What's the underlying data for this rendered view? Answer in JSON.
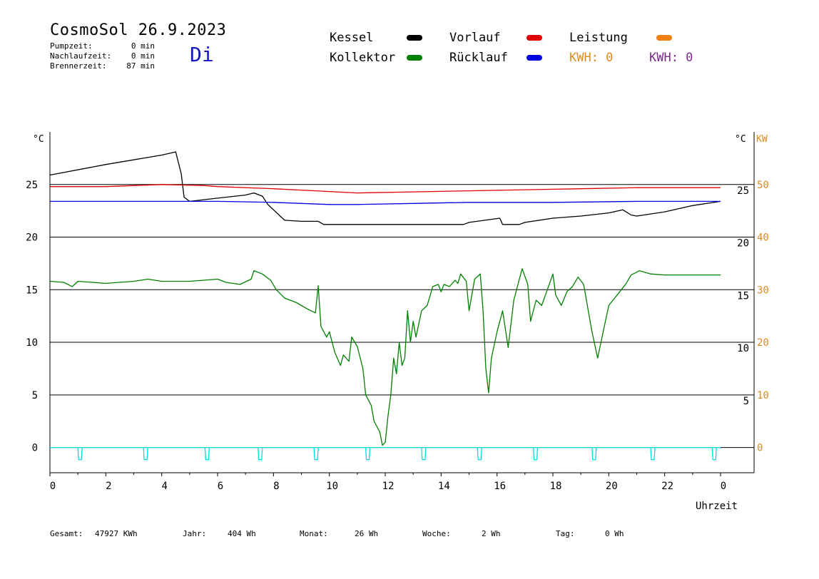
{
  "header": {
    "title": "CosmoSol 26.9.2023",
    "day": "Di",
    "stats": [
      {
        "label": "Pumpzeit:",
        "value": "0 min"
      },
      {
        "label": "Nachlaufzeit:",
        "value": "0 min"
      },
      {
        "label": "Brennerzeit:",
        "value": "87 min"
      }
    ]
  },
  "legend": {
    "kessel": {
      "label": "Kessel",
      "color": "#000000"
    },
    "kollektor": {
      "label": "Kollektor",
      "color": "#008000"
    },
    "vorlauf": {
      "label": "Vorlauf",
      "color": "#e00000"
    },
    "ruecklauf": {
      "label": "Rücklauf",
      "color": "#0000e0"
    },
    "leistung": {
      "label": "Leistung",
      "color": "#f08010"
    },
    "kwh_orange": "KWH: 0",
    "kwh_purple": "KWH: 0",
    "orange": "#e08a1e",
    "purple": "#7a2a8a"
  },
  "footer": {
    "gesamt": {
      "label": "Gesamt:",
      "value": "47927 KWh"
    },
    "jahr": {
      "label": "Jahr:",
      "value": "404 Wh"
    },
    "monat": {
      "label": "Monat:",
      "value": "26 Wh"
    },
    "woche": {
      "label": "Woche:",
      "value": "2 Wh"
    },
    "tag": {
      "label": "Tag:",
      "value": "0 Wh"
    }
  },
  "chart_data": {
    "type": "line",
    "xlabel": "Uhrzeit",
    "x_ticks": [
      "0",
      "2",
      "4",
      "6",
      "8",
      "10",
      "12",
      "14",
      "16",
      "18",
      "20",
      "22",
      "0"
    ],
    "xlim": [
      0,
      24
    ],
    "y_left": {
      "unit": "°C",
      "ticks": [
        "0",
        "5",
        "10",
        "15",
        "20",
        "25"
      ],
      "ylim": [
        -2.4,
        30
      ]
    },
    "y_right_temp": {
      "unit": "°C",
      "ticks": [
        "5",
        "10",
        "15",
        "20",
        "25"
      ]
    },
    "y_right_power": {
      "unit": "KW",
      "ticks": [
        "0",
        "10",
        "20",
        "30",
        "40",
        "50"
      ],
      "ylim": [
        -4.8,
        60
      ]
    },
    "grid": "horizontal",
    "series": [
      {
        "name": "Kessel",
        "color": "#000000",
        "points": [
          [
            0,
            25.9
          ],
          [
            2,
            26.9
          ],
          [
            4,
            27.8
          ],
          [
            4.5,
            28.1
          ],
          [
            4.7,
            26
          ],
          [
            4.8,
            23.8
          ],
          [
            5,
            23.4
          ],
          [
            6,
            23.7
          ],
          [
            7,
            24
          ],
          [
            7.3,
            24.2
          ],
          [
            7.6,
            23.9
          ],
          [
            7.8,
            23.1
          ],
          [
            8,
            22.6
          ],
          [
            8.4,
            21.6
          ],
          [
            9,
            21.5
          ],
          [
            9.6,
            21.5
          ],
          [
            9.8,
            21.2
          ],
          [
            11,
            21.2
          ],
          [
            12,
            21.2
          ],
          [
            13,
            21.2
          ],
          [
            14,
            21.2
          ],
          [
            14.8,
            21.2
          ],
          [
            15,
            21.4
          ],
          [
            16.1,
            21.8
          ],
          [
            16.2,
            21.2
          ],
          [
            16.8,
            21.2
          ],
          [
            17,
            21.4
          ],
          [
            18,
            21.8
          ],
          [
            19,
            22
          ],
          [
            20,
            22.3
          ],
          [
            20.5,
            22.6
          ],
          [
            20.8,
            22.1
          ],
          [
            21,
            22
          ],
          [
            22,
            22.4
          ],
          [
            23,
            23
          ],
          [
            24,
            23.4
          ]
        ]
      },
      {
        "name": "Vorlauf",
        "color": "#e00000",
        "points": [
          [
            0,
            24.8
          ],
          [
            2,
            24.8
          ],
          [
            4,
            25
          ],
          [
            5.5,
            24.9
          ],
          [
            6,
            24.8
          ],
          [
            8,
            24.6
          ],
          [
            9.5,
            24.4
          ],
          [
            11,
            24.2
          ],
          [
            13,
            24.3
          ],
          [
            15,
            24.4
          ],
          [
            17,
            24.5
          ],
          [
            19,
            24.6
          ],
          [
            21,
            24.7
          ],
          [
            24,
            24.7
          ]
        ]
      },
      {
        "name": "Rücklauf",
        "color": "#0000e0",
        "points": [
          [
            0,
            23.4
          ],
          [
            4,
            23.4
          ],
          [
            6,
            23.4
          ],
          [
            8,
            23.3
          ],
          [
            10,
            23.1
          ],
          [
            11,
            23.1
          ],
          [
            13,
            23.2
          ],
          [
            15,
            23.3
          ],
          [
            18,
            23.3
          ],
          [
            21,
            23.4
          ],
          [
            24,
            23.4
          ]
        ]
      },
      {
        "name": "Kollektor",
        "color": "#008000",
        "points": [
          [
            0,
            15.8
          ],
          [
            0.5,
            15.7
          ],
          [
            0.8,
            15.3
          ],
          [
            1,
            15.8
          ],
          [
            2,
            15.6
          ],
          [
            3,
            15.8
          ],
          [
            3.5,
            16
          ],
          [
            4,
            15.8
          ],
          [
            5,
            15.8
          ],
          [
            5.5,
            15.9
          ],
          [
            6,
            16
          ],
          [
            6.3,
            15.7
          ],
          [
            6.8,
            15.5
          ],
          [
            7.2,
            16
          ],
          [
            7.3,
            16.8
          ],
          [
            7.6,
            16.5
          ],
          [
            7.9,
            15.9
          ],
          [
            8.1,
            15
          ],
          [
            8.4,
            14.2
          ],
          [
            8.8,
            13.8
          ],
          [
            9.2,
            13.2
          ],
          [
            9.5,
            12.8
          ],
          [
            9.6,
            15.4
          ],
          [
            9.7,
            11.5
          ],
          [
            9.9,
            10.5
          ],
          [
            10,
            11
          ],
          [
            10.2,
            9
          ],
          [
            10.4,
            7.8
          ],
          [
            10.5,
            8.8
          ],
          [
            10.7,
            8.2
          ],
          [
            10.8,
            10.5
          ],
          [
            11,
            9.6
          ],
          [
            11.2,
            7.5
          ],
          [
            11.3,
            5
          ],
          [
            11.5,
            4
          ],
          [
            11.6,
            2.5
          ],
          [
            11.8,
            1.5
          ],
          [
            11.9,
            0.2
          ],
          [
            12,
            0.5
          ],
          [
            12.1,
            3
          ],
          [
            12.2,
            5
          ],
          [
            12.3,
            8.5
          ],
          [
            12.4,
            7
          ],
          [
            12.5,
            10
          ],
          [
            12.6,
            7.8
          ],
          [
            12.7,
            8.5
          ],
          [
            12.8,
            13
          ],
          [
            12.9,
            10
          ],
          [
            13,
            12
          ],
          [
            13.1,
            10.5
          ],
          [
            13.3,
            13
          ],
          [
            13.5,
            13.5
          ],
          [
            13.7,
            15.3
          ],
          [
            13.9,
            15.5
          ],
          [
            14,
            14.8
          ],
          [
            14.1,
            15.5
          ],
          [
            14.3,
            15.3
          ],
          [
            14.5,
            15.9
          ],
          [
            14.6,
            15.6
          ],
          [
            14.7,
            16.5
          ],
          [
            14.9,
            15.8
          ],
          [
            15,
            13
          ],
          [
            15.2,
            16
          ],
          [
            15.4,
            16.5
          ],
          [
            15.5,
            13
          ],
          [
            15.6,
            7.5
          ],
          [
            15.7,
            5.2
          ],
          [
            15.8,
            8.5
          ],
          [
            16,
            11
          ],
          [
            16.2,
            13
          ],
          [
            16.4,
            9.5
          ],
          [
            16.6,
            14
          ],
          [
            16.9,
            17
          ],
          [
            17.1,
            15.5
          ],
          [
            17.2,
            12
          ],
          [
            17.4,
            14
          ],
          [
            17.6,
            13.5
          ],
          [
            17.8,
            15
          ],
          [
            18,
            16.5
          ],
          [
            18.1,
            14.5
          ],
          [
            18.3,
            13.5
          ],
          [
            18.5,
            14.8
          ],
          [
            18.7,
            15.3
          ],
          [
            18.9,
            16.2
          ],
          [
            19.1,
            15.5
          ],
          [
            19.3,
            12.5
          ],
          [
            19.4,
            11
          ],
          [
            19.6,
            8.5
          ],
          [
            19.8,
            11
          ],
          [
            20,
            13.5
          ],
          [
            20.3,
            14.5
          ],
          [
            20.6,
            15.5
          ],
          [
            20.8,
            16.4
          ],
          [
            21.1,
            16.8
          ],
          [
            21.5,
            16.5
          ],
          [
            22,
            16.4
          ],
          [
            23,
            16.4
          ],
          [
            24,
            16.4
          ]
        ]
      },
      {
        "name": "Leistung",
        "color": "#00e0e0",
        "pulses_hours": [
          1.05,
          3.4,
          5.6,
          7.5,
          9.5,
          11.35,
          13.35,
          15.35,
          17.35,
          19.45,
          21.55,
          23.75
        ]
      }
    ]
  }
}
